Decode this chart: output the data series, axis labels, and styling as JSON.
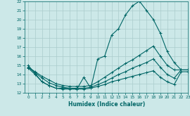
{
  "x_ticks": [
    0,
    1,
    2,
    3,
    4,
    5,
    6,
    7,
    8,
    9,
    10,
    11,
    12,
    13,
    14,
    15,
    16,
    17,
    18,
    19,
    20,
    21,
    22,
    23
  ],
  "ylim": [
    12,
    22
  ],
  "xlim": [
    -0.5,
    23
  ],
  "yticks": [
    12,
    13,
    14,
    15,
    16,
    17,
    18,
    19,
    20,
    21,
    22
  ],
  "xlabel": "Humidex (Indice chaleur)",
  "bg_color": "#cce8e8",
  "line_color": "#006666",
  "grid_color": "#aacccc",
  "line1_x": [
    0,
    1,
    2,
    3,
    4,
    5,
    6,
    7,
    8,
    9,
    10,
    11,
    12,
    13,
    14,
    15,
    16,
    17,
    18,
    19,
    20,
    21,
    22,
    23
  ],
  "line1_y": [
    15.0,
    14.1,
    13.2,
    12.8,
    12.5,
    12.5,
    12.5,
    12.4,
    13.7,
    12.5,
    15.7,
    16.0,
    18.3,
    19.0,
    20.5,
    21.5,
    22.0,
    21.0,
    20.0,
    18.5,
    16.5,
    15.3,
    14.5,
    14.5
  ],
  "line2_x": [
    0,
    1,
    2,
    3,
    4,
    5,
    6,
    7,
    8,
    9,
    10,
    11,
    12,
    13,
    14,
    15,
    16,
    17,
    18,
    19,
    20,
    21,
    22,
    23
  ],
  "line2_y": [
    14.8,
    14.3,
    13.8,
    13.4,
    13.0,
    12.8,
    12.7,
    12.7,
    12.7,
    12.8,
    13.2,
    13.7,
    14.2,
    14.7,
    15.2,
    15.6,
    16.1,
    16.6,
    17.1,
    16.0,
    15.0,
    14.5,
    14.5,
    14.5
  ],
  "line3_x": [
    0,
    1,
    2,
    3,
    4,
    5,
    6,
    7,
    8,
    9,
    10,
    11,
    12,
    13,
    14,
    15,
    16,
    17,
    18,
    19,
    20,
    21,
    22,
    23
  ],
  "line3_y": [
    14.8,
    14.2,
    13.6,
    13.1,
    12.8,
    12.6,
    12.5,
    12.5,
    12.5,
    12.6,
    12.9,
    13.2,
    13.6,
    14.0,
    14.3,
    14.7,
    15.0,
    15.3,
    15.7,
    14.8,
    14.0,
    13.6,
    14.5,
    14.5
  ],
  "line4_x": [
    0,
    1,
    2,
    3,
    4,
    5,
    6,
    7,
    8,
    9,
    10,
    11,
    12,
    13,
    14,
    15,
    16,
    17,
    18,
    19,
    20,
    21,
    22,
    23
  ],
  "line4_y": [
    14.7,
    14.0,
    13.2,
    12.8,
    12.5,
    12.4,
    12.4,
    12.4,
    12.4,
    12.5,
    12.7,
    12.9,
    13.2,
    13.4,
    13.6,
    13.8,
    14.0,
    14.2,
    14.4,
    13.7,
    13.2,
    12.9,
    14.3,
    14.3
  ]
}
